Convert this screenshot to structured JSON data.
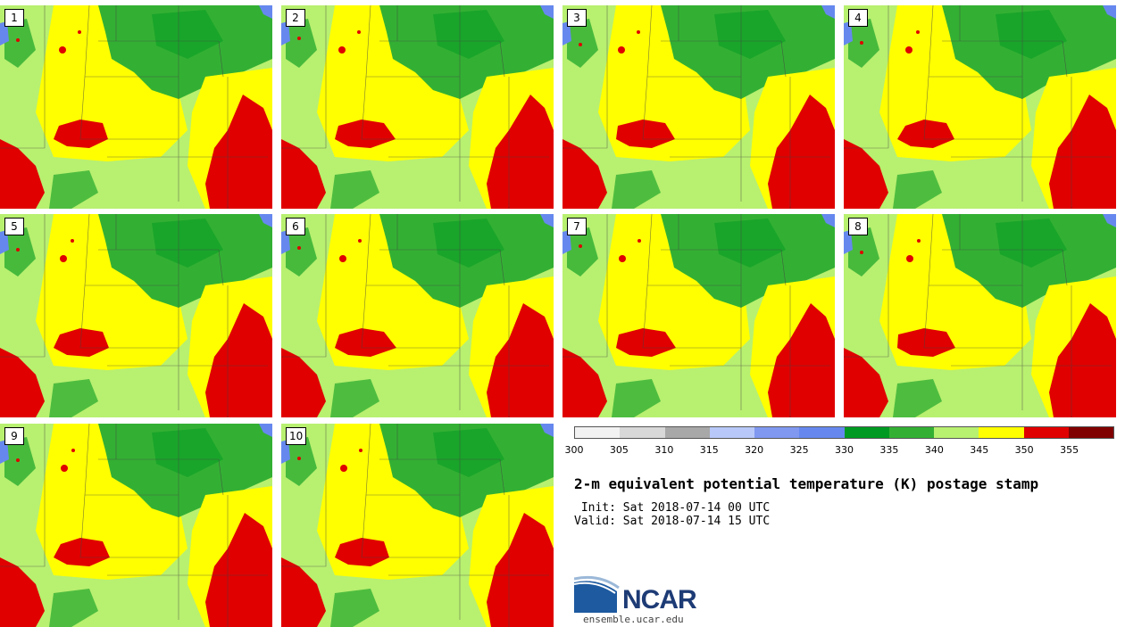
{
  "panels": [
    {
      "label": "1"
    },
    {
      "label": "2"
    },
    {
      "label": "3"
    },
    {
      "label": "4"
    },
    {
      "label": "5"
    },
    {
      "label": "6"
    },
    {
      "label": "7"
    },
    {
      "label": "8"
    },
    {
      "label": "9"
    },
    {
      "label": "10"
    }
  ],
  "colorbar": {
    "ticks": [
      "300",
      "305",
      "310",
      "315",
      "320",
      "325",
      "330",
      "335",
      "340",
      "345",
      "350",
      "355"
    ],
    "colors": [
      "#f2f2f2",
      "#d8d8d8",
      "#a8a8a8",
      "#b8c8f8",
      "#8098f0",
      "#6688ee",
      "#009922",
      "#33b033",
      "#b8f070",
      "#ffff00",
      "#e00000",
      "#800000"
    ]
  },
  "title": "2-m equivalent potential temperature (K) postage stamp",
  "init_line": " Init: Sat 2018-07-14 00 UTC",
  "valid_line": "Valid: Sat 2018-07-14 15 UTC",
  "logo": {
    "text": "NCAR",
    "site": "ensemble.ucar.edu"
  }
}
